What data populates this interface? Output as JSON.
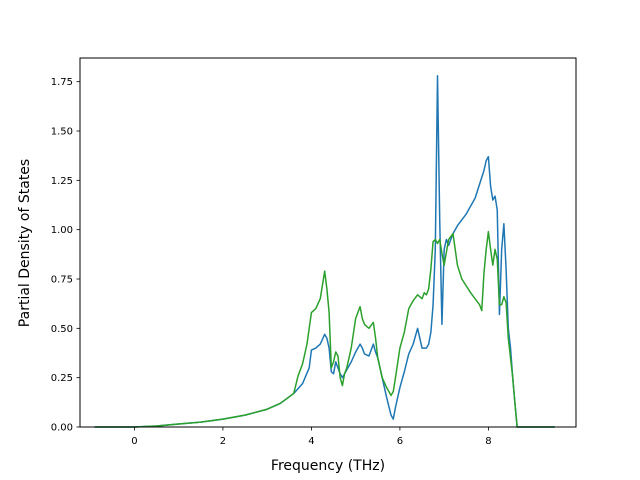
{
  "chart_data": {
    "type": "line",
    "title": "",
    "xlabel": "Frequency (THz)",
    "ylabel": "Partial Density of States",
    "xlim": [
      -1.23,
      9.98
    ],
    "ylim": [
      0,
      1.87
    ],
    "xticks": [
      0,
      2,
      4,
      6,
      8
    ],
    "yticks": [
      0.0,
      0.25,
      0.5,
      0.75,
      1.0,
      1.25,
      1.5,
      1.75
    ],
    "xtick_labels": [
      "0",
      "2",
      "4",
      "6",
      "8"
    ],
    "ytick_labels": [
      "0.00",
      "0.25",
      "0.50",
      "0.75",
      "1.00",
      "1.25",
      "1.50",
      "1.75"
    ],
    "grid": false,
    "series": [
      {
        "color": "#1f77b4",
        "x": [
          -0.9,
          0,
          0.5,
          1,
          1.5,
          2,
          2.5,
          3,
          3.3,
          3.6,
          3.8,
          3.95,
          4.0,
          4.1,
          4.2,
          4.3,
          4.35,
          4.4,
          4.45,
          4.5,
          4.55,
          4.6,
          4.65,
          4.7,
          4.75,
          4.8,
          4.9,
          5.0,
          5.1,
          5.15,
          5.2,
          5.3,
          5.4,
          5.45,
          5.5,
          5.6,
          5.7,
          5.8,
          5.85,
          5.9,
          6.0,
          6.1,
          6.2,
          6.3,
          6.35,
          6.4,
          6.5,
          6.6,
          6.65,
          6.7,
          6.75,
          6.8,
          6.85,
          6.9,
          6.95,
          7.0,
          7.05,
          7.1,
          7.2,
          7.3,
          7.5,
          7.7,
          7.9,
          7.95,
          8.0,
          8.05,
          8.1,
          8.15,
          8.2,
          8.25,
          8.3,
          8.35,
          8.4,
          8.45,
          8.5,
          8.55,
          8.6,
          8.65,
          9.5
        ],
        "y": [
          0,
          0,
          0.005,
          0.015,
          0.025,
          0.04,
          0.06,
          0.09,
          0.12,
          0.17,
          0.22,
          0.3,
          0.39,
          0.4,
          0.42,
          0.47,
          0.45,
          0.4,
          0.28,
          0.27,
          0.33,
          0.3,
          0.27,
          0.25,
          0.27,
          0.29,
          0.33,
          0.38,
          0.42,
          0.4,
          0.37,
          0.36,
          0.42,
          0.38,
          0.35,
          0.25,
          0.15,
          0.06,
          0.04,
          0.1,
          0.2,
          0.28,
          0.37,
          0.42,
          0.46,
          0.5,
          0.4,
          0.4,
          0.42,
          0.48,
          0.62,
          0.9,
          1.78,
          1.05,
          0.52,
          0.9,
          0.95,
          0.92,
          0.98,
          1.02,
          1.08,
          1.16,
          1.3,
          1.35,
          1.37,
          1.22,
          1.15,
          1.17,
          1.1,
          0.57,
          0.9,
          1.03,
          0.8,
          0.5,
          0.4,
          0.25,
          0.12,
          0.0,
          0
        ]
      },
      {
        "color": "#2ca02c",
        "x": [
          -0.9,
          0,
          0.5,
          1,
          1.5,
          2,
          2.5,
          3,
          3.3,
          3.6,
          3.7,
          3.8,
          3.9,
          4.0,
          4.1,
          4.2,
          4.3,
          4.35,
          4.4,
          4.45,
          4.5,
          4.55,
          4.6,
          4.65,
          4.7,
          4.75,
          4.8,
          4.9,
          5.0,
          5.1,
          5.15,
          5.2,
          5.3,
          5.4,
          5.45,
          5.5,
          5.6,
          5.7,
          5.8,
          5.85,
          5.9,
          6.0,
          6.1,
          6.2,
          6.3,
          6.4,
          6.5,
          6.55,
          6.6,
          6.65,
          6.7,
          6.75,
          6.8,
          6.85,
          6.9,
          6.95,
          7.0,
          7.1,
          7.2,
          7.3,
          7.4,
          7.6,
          7.8,
          7.85,
          7.9,
          7.95,
          8.0,
          8.05,
          8.1,
          8.15,
          8.2,
          8.25,
          8.3,
          8.35,
          8.4,
          8.45,
          8.5,
          8.55,
          8.6,
          8.65,
          9.5
        ],
        "y": [
          0,
          0,
          0.005,
          0.015,
          0.025,
          0.04,
          0.06,
          0.09,
          0.12,
          0.17,
          0.26,
          0.32,
          0.42,
          0.58,
          0.6,
          0.65,
          0.79,
          0.7,
          0.58,
          0.3,
          0.33,
          0.38,
          0.36,
          0.25,
          0.21,
          0.27,
          0.3,
          0.4,
          0.55,
          0.61,
          0.55,
          0.52,
          0.5,
          0.53,
          0.45,
          0.35,
          0.25,
          0.2,
          0.16,
          0.18,
          0.25,
          0.4,
          0.48,
          0.6,
          0.64,
          0.67,
          0.65,
          0.68,
          0.67,
          0.7,
          0.8,
          0.94,
          0.95,
          0.93,
          0.95,
          0.88,
          0.82,
          0.95,
          0.98,
          0.82,
          0.75,
          0.68,
          0.62,
          0.59,
          0.78,
          0.9,
          0.99,
          0.9,
          0.82,
          0.9,
          0.85,
          0.62,
          0.62,
          0.66,
          0.63,
          0.45,
          0.35,
          0.25,
          0.12,
          0.0,
          0
        ]
      }
    ]
  }
}
